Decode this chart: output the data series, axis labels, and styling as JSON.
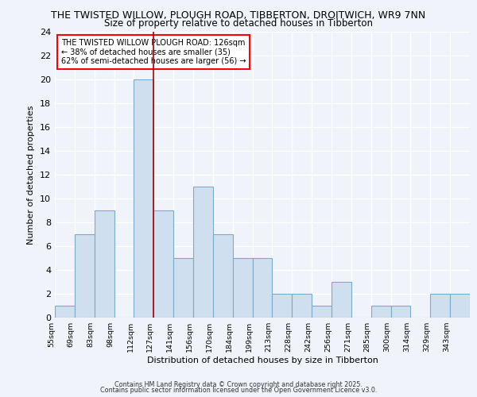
{
  "title_line1": "THE TWISTED WILLOW, PLOUGH ROAD, TIBBERTON, DROITWICH, WR9 7NN",
  "title_line2": "Size of property relative to detached houses in Tibberton",
  "xlabel": "Distribution of detached houses by size in Tibberton",
  "ylabel": "Number of detached properties",
  "annotation_title": "THE TWISTED WILLOW PLOUGH ROAD: 126sqm",
  "annotation_line2": "← 38% of detached houses are smaller (35)",
  "annotation_line3": "62% of semi-detached houses are larger (56) →",
  "tick_labels": [
    "55sqm",
    "69sqm",
    "83sqm",
    "98sqm",
    "112sqm",
    "127sqm",
    "141sqm",
    "156sqm",
    "170sqm",
    "184sqm",
    "199sqm",
    "213sqm",
    "228sqm",
    "242sqm",
    "256sqm",
    "271sqm",
    "285sqm",
    "300sqm",
    "314sqm",
    "329sqm",
    "343sqm"
  ],
  "values": [
    1,
    7,
    9,
    0,
    20,
    9,
    5,
    11,
    7,
    5,
    5,
    2,
    2,
    1,
    3,
    0,
    1,
    1,
    0,
    2,
    2
  ],
  "bar_color": "#d0dff0",
  "bar_edge_color": "#7aaac8",
  "marker_color": "#aa0000",
  "marker_index": 5,
  "ylim": [
    0,
    24
  ],
  "yticks": [
    0,
    2,
    4,
    6,
    8,
    10,
    12,
    14,
    16,
    18,
    20,
    22,
    24
  ],
  "background_color": "#f0f4fa",
  "plot_bg_color": "#f0f4fa",
  "grid_color": "#ffffff",
  "footer_line1": "Contains HM Land Registry data © Crown copyright and database right 2025.",
  "footer_line2": "Contains public sector information licensed under the Open Government Licence v3.0."
}
